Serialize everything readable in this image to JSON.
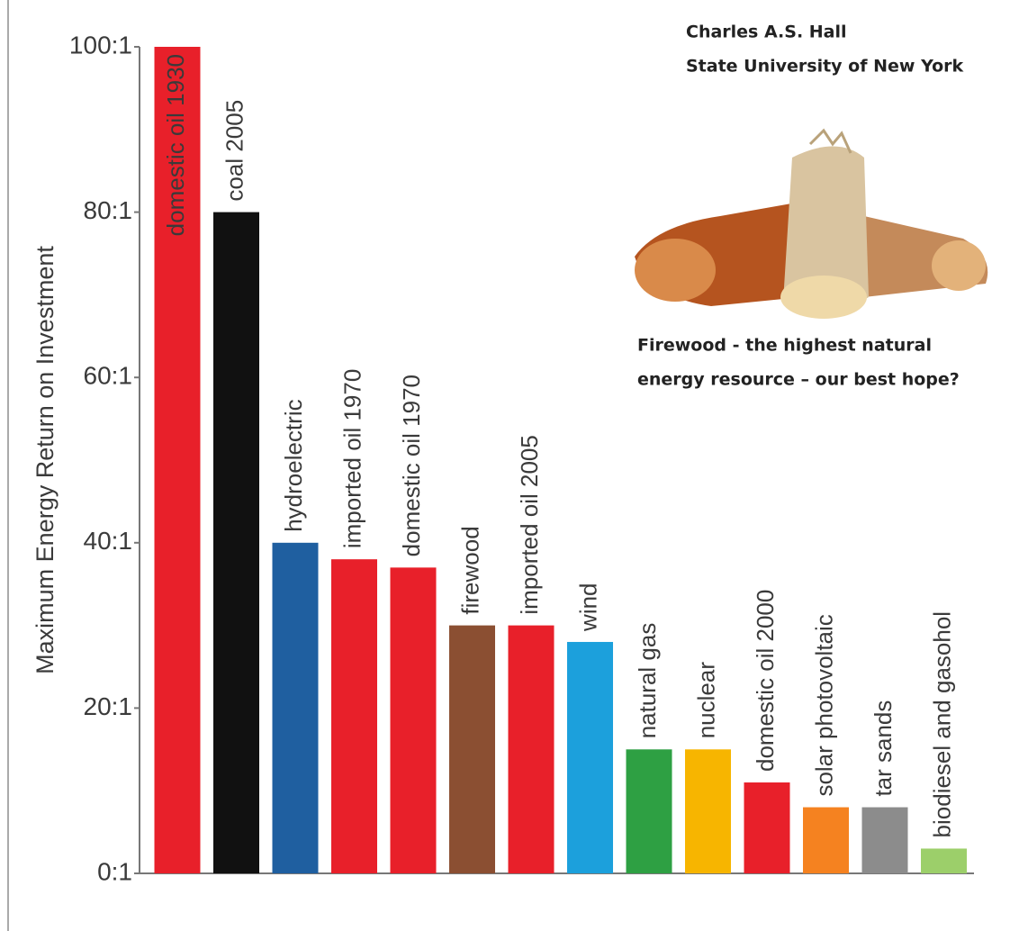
{
  "chart_data": {
    "type": "bar",
    "y_label": "Maximum Energy Return on Investment",
    "annotations": [
      "Charles A.S. Hall",
      "State University of New York",
      "Firewood - the highest natural",
      "energy resource – our best hope?"
    ],
    "categories": [
      "domestic oil 1930",
      "coal 2005",
      "hydroelectric",
      "imported oil 1970",
      "domestic oil 1970",
      "firewood",
      "imported oil 2005",
      "wind",
      "natural gas",
      "nuclear",
      "domestic oil 2000",
      "solar photovoltaic",
      "tar sands",
      "biodiesel and gasohol"
    ],
    "values": [
      100,
      80,
      40,
      38,
      37,
      30,
      30,
      28,
      15,
      15,
      11,
      8,
      8,
      3
    ],
    "colors": [
      "#e8202a",
      "#111111",
      "#1f5fa0",
      "#e8202a",
      "#e8202a",
      "#8b4f32",
      "#e8202a",
      "#1ca0dc",
      "#2ea043",
      "#f7b500",
      "#e8202a",
      "#f58220",
      "#8c8c8c",
      "#9ccf6a"
    ],
    "ylim": [
      0,
      100
    ],
    "yticks": [
      {
        "value": 0,
        "label": "0:1"
      },
      {
        "value": 20,
        "label": "20:1"
      },
      {
        "value": 40,
        "label": "40:1"
      },
      {
        "value": 60,
        "label": "60:1"
      },
      {
        "value": 80,
        "label": "80:1"
      },
      {
        "value": 100,
        "label": "100:1"
      }
    ]
  }
}
